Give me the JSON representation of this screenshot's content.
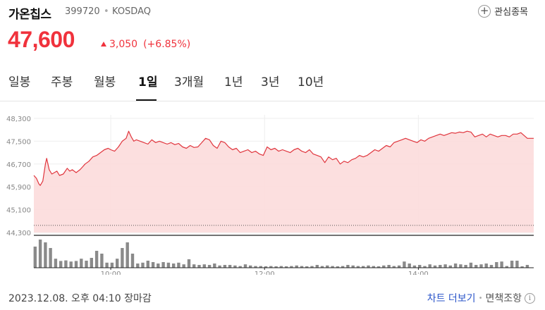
{
  "stock": {
    "name": "가온칩스",
    "code": "399720",
    "separator": "•",
    "market": "KOSDAQ",
    "price": "47,600",
    "change": "3,050",
    "change_pct": "(+6.85%)",
    "direction": "up"
  },
  "favorite": {
    "label": "관심종목",
    "icon": "plus-circle-icon"
  },
  "tabs": [
    {
      "label": "일봉",
      "active": false
    },
    {
      "label": "주봉",
      "active": false
    },
    {
      "label": "월봉",
      "active": false
    },
    {
      "label": "1일",
      "active": true
    },
    {
      "label": "3개월",
      "active": false
    },
    {
      "label": "1년",
      "active": false
    },
    {
      "label": "3년",
      "active": false
    },
    {
      "label": "10년",
      "active": false
    }
  ],
  "colors": {
    "up": "#f0323c",
    "line": "#e0353d",
    "area": "#fcdcdc",
    "volume": "#8a8a8a",
    "link": "#2b55c9"
  },
  "chart_data": {
    "type": "line",
    "y_ticks": [
      "48,300",
      "47,500",
      "46,700",
      "45,900",
      "45,100",
      "44,300"
    ],
    "y_tick_values": [
      48300,
      47500,
      46700,
      45900,
      45100,
      44300
    ],
    "ylim": [
      44300,
      48300
    ],
    "x_ticks": [
      "10:00",
      "12:00",
      "14:00"
    ],
    "x_tick_minutes": [
      600,
      720,
      840
    ],
    "xlim": [
      540,
      930
    ],
    "reference_price": 44550,
    "price_series": {
      "x": [
        540,
        542,
        544,
        545,
        547,
        549,
        550,
        552,
        554,
        556,
        558,
        560,
        563,
        566,
        568,
        570,
        573,
        576,
        578,
        580,
        583,
        586,
        589,
        592,
        595,
        598,
        600,
        603,
        606,
        609,
        612,
        614,
        616,
        618,
        620,
        623,
        626,
        629,
        632,
        635,
        638,
        641,
        644,
        647,
        650,
        653,
        656,
        659,
        662,
        665,
        668,
        671,
        674,
        677,
        680,
        683,
        686,
        689,
        692,
        695,
        698,
        701,
        704,
        707,
        710,
        713,
        716,
        719,
        722,
        725,
        728,
        731,
        734,
        737,
        740,
        743,
        746,
        749,
        752,
        755,
        758,
        761,
        764,
        767,
        770,
        773,
        776,
        779,
        782,
        785,
        788,
        791,
        794,
        797,
        800,
        803,
        806,
        809,
        812,
        815,
        818,
        821,
        824,
        827,
        830,
        833,
        836,
        839,
        842,
        845,
        848,
        851,
        854,
        857,
        860,
        863,
        866,
        869,
        872,
        875,
        878,
        881,
        884,
        887,
        890,
        893,
        896,
        899,
        902,
        905,
        908,
        911,
        914,
        917,
        920,
        925,
        930
      ],
      "y": [
        46300,
        46200,
        46000,
        45950,
        46100,
        46700,
        46900,
        46500,
        46350,
        46400,
        46450,
        46300,
        46350,
        46550,
        46450,
        46500,
        46400,
        46500,
        46600,
        46700,
        46800,
        46950,
        47000,
        47100,
        47200,
        47250,
        47200,
        47150,
        47300,
        47500,
        47600,
        47850,
        47650,
        47500,
        47550,
        47500,
        47450,
        47400,
        47550,
        47450,
        47500,
        47450,
        47400,
        47450,
        47380,
        47420,
        47300,
        47250,
        47350,
        47280,
        47300,
        47450,
        47600,
        47550,
        47350,
        47250,
        47500,
        47450,
        47300,
        47200,
        47250,
        47100,
        47150,
        47200,
        47100,
        47150,
        47050,
        47000,
        47300,
        47200,
        47250,
        47150,
        47200,
        47150,
        47100,
        47200,
        47250,
        47150,
        47100,
        47200,
        47050,
        47000,
        46950,
        46750,
        46950,
        46850,
        46900,
        46700,
        46800,
        46750,
        46850,
        46900,
        47000,
        46950,
        47000,
        47100,
        47200,
        47150,
        47250,
        47350,
        47300,
        47450,
        47500,
        47550,
        47600,
        47550,
        47500,
        47450,
        47550,
        47500,
        47600,
        47650,
        47700,
        47750,
        47700,
        47750,
        47800,
        47780,
        47820,
        47800,
        47850,
        47820,
        47650,
        47700,
        47750,
        47650,
        47750,
        47700,
        47650,
        47700,
        47700,
        47650,
        47750,
        47750,
        47800,
        47600,
        47600
      ]
    },
    "volume": {
      "x": [
        541,
        545,
        549,
        553,
        557,
        561,
        565,
        569,
        573,
        577,
        581,
        585,
        589,
        593,
        597,
        601,
        605,
        609,
        613,
        617,
        621,
        625,
        629,
        633,
        637,
        641,
        645,
        649,
        653,
        657,
        661,
        665,
        669,
        673,
        677,
        681,
        685,
        689,
        693,
        697,
        701,
        705,
        709,
        713,
        717,
        721,
        725,
        729,
        733,
        737,
        741,
        745,
        749,
        753,
        757,
        761,
        765,
        769,
        773,
        777,
        781,
        785,
        789,
        793,
        797,
        801,
        805,
        809,
        813,
        817,
        821,
        825,
        829,
        833,
        837,
        841,
        845,
        849,
        853,
        857,
        861,
        865,
        869,
        873,
        877,
        881,
        885,
        889,
        893,
        897,
        901,
        905,
        909,
        913,
        917,
        921,
        925
      ],
      "values": [
        0.75,
        1.0,
        0.9,
        0.7,
        0.32,
        0.24,
        0.26,
        0.22,
        0.24,
        0.32,
        0.25,
        0.35,
        0.6,
        0.5,
        0.18,
        0.18,
        0.32,
        0.7,
        0.9,
        0.5,
        0.15,
        0.18,
        0.25,
        0.2,
        0.15,
        0.2,
        0.18,
        0.15,
        0.18,
        0.12,
        0.3,
        0.12,
        0.1,
        0.12,
        0.1,
        0.15,
        0.08,
        0.1,
        0.1,
        0.08,
        0.06,
        0.12,
        0.08,
        0.06,
        0.06,
        0.05,
        0.06,
        0.05,
        0.06,
        0.05,
        0.06,
        0.08,
        0.06,
        0.05,
        0.06,
        0.1,
        0.06,
        0.08,
        0.06,
        0.05,
        0.06,
        0.1,
        0.08,
        0.06,
        0.06,
        0.08,
        0.06,
        0.05,
        0.08,
        0.1,
        0.06,
        0.08,
        0.22,
        0.15,
        0.08,
        0.1,
        0.06,
        0.12,
        0.08,
        0.1,
        0.12,
        0.08,
        0.15,
        0.12,
        0.1,
        0.18,
        0.1,
        0.12,
        0.15,
        0.1,
        0.2,
        0.22,
        0.06,
        0.25,
        0.25,
        0.05,
        0.1
      ]
    }
  },
  "footer": {
    "timestamp": "2023.12.08. 오후 04:10 장마감",
    "chart_link": "차트 더보기",
    "separator": "•",
    "disclaimer": "면책조항",
    "info_icon": "info-icon"
  }
}
